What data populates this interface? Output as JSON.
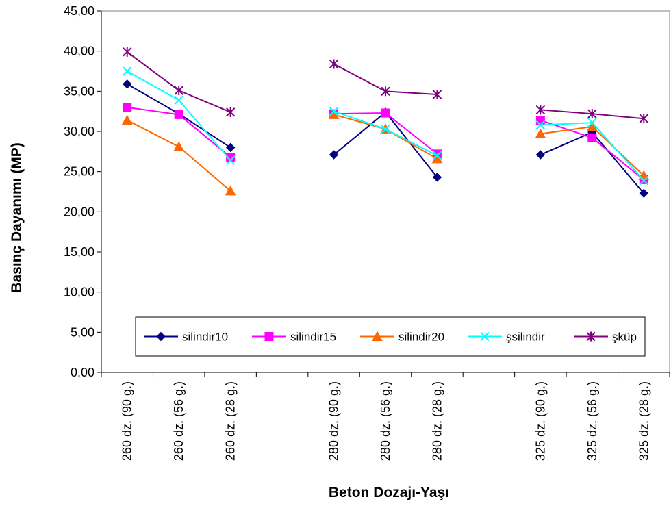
{
  "chart_data": {
    "type": "line",
    "xlabel": "Beton Dozajı-Yaşı",
    "ylabel": "Basınç Dayanımı (MP)",
    "ylim": [
      0,
      45
    ],
    "ytick_step": 5,
    "grid": false,
    "legend_position": "bottom-center inside plot",
    "categories": [
      "260 dz. (90 g.)",
      "260 dz. (56 g.)",
      "260 dz. (28 g.)",
      "",
      "280 dz. (90 g.)",
      "280 dz. (56 g.)",
      "280 dz. (28 g.)",
      "",
      "325 dz. (90 g.)",
      "325 dz. (56 g.)",
      "325 dz. (28 g.)"
    ],
    "series": [
      {
        "name": "silindir10",
        "color": "#000080",
        "marker": "diamond",
        "values": [
          35.9,
          32.2,
          28.0,
          null,
          27.1,
          32.4,
          24.3,
          null,
          27.1,
          29.9,
          22.3
        ]
      },
      {
        "name": "silindir15",
        "color": "#FF00FF",
        "marker": "square",
        "values": [
          33.0,
          32.1,
          26.8,
          null,
          32.2,
          32.3,
          27.2,
          null,
          31.4,
          29.2,
          24.0
        ]
      },
      {
        "name": "silindir20",
        "color": "#FF6600",
        "marker": "triangle",
        "values": [
          31.4,
          28.1,
          22.6,
          null,
          32.1,
          30.3,
          26.6,
          null,
          29.7,
          30.6,
          24.5
        ]
      },
      {
        "name": "şsilindir",
        "color": "#00FFFF",
        "marker": "x",
        "values": [
          37.5,
          33.9,
          26.4,
          null,
          32.5,
          30.3,
          27.0,
          null,
          30.8,
          31.1,
          23.9
        ]
      },
      {
        "name": "şküp",
        "color": "#800080",
        "marker": "star",
        "values": [
          39.9,
          35.1,
          32.4,
          null,
          38.4,
          35.0,
          34.6,
          null,
          32.7,
          32.2,
          31.6
        ]
      }
    ]
  }
}
